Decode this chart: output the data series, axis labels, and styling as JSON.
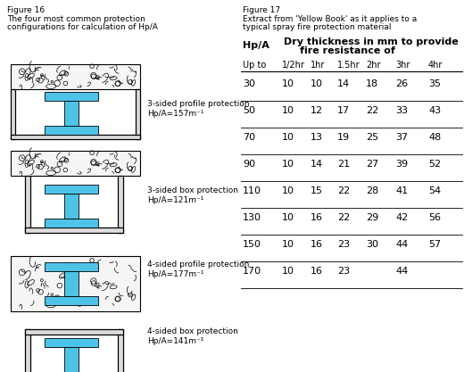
{
  "fig16_title": "Figure 16",
  "fig16_subtitle": "The four most common protection\nconfigurations for calculation of Hp/A",
  "fig17_title": "Figure 17",
  "fig17_subtitle": "Extract from 'Yellow Book' as it applies to a\ntypical spray fire protection material",
  "table_header_col1": "Hp/A",
  "table_header_col2_line1": "Dry thickness in mm to provide",
  "table_header_col2_line2": "fire resistance of",
  "col_headers": [
    "Up to",
    "1/2hr",
    "1hr",
    "1.5hr",
    "2hr",
    "3hr",
    "4hr"
  ],
  "table_data": [
    [
      30,
      10,
      10,
      14,
      18,
      26,
      35
    ],
    [
      50,
      10,
      12,
      17,
      22,
      33,
      43
    ],
    [
      70,
      10,
      13,
      19,
      25,
      37,
      48
    ],
    [
      90,
      10,
      14,
      21,
      27,
      39,
      52
    ],
    [
      110,
      10,
      15,
      22,
      28,
      41,
      54
    ],
    [
      130,
      10,
      16,
      22,
      29,
      42,
      56
    ],
    [
      150,
      10,
      16,
      23,
      30,
      44,
      57
    ],
    [
      170,
      10,
      16,
      23,
      null,
      44,
      null
    ]
  ],
  "beam_color": "#4DC3E8",
  "background_color": "#FFFFFF",
  "descriptions": [
    "3-sided profile protection\nHp/A=157m⁻¹",
    "3-sided box protection\nHp/A=121m⁻¹",
    "4-sided profile protection\nHp/A=177m⁻¹",
    "4-sided box protection\nHp/A=141m⁻¹"
  ]
}
